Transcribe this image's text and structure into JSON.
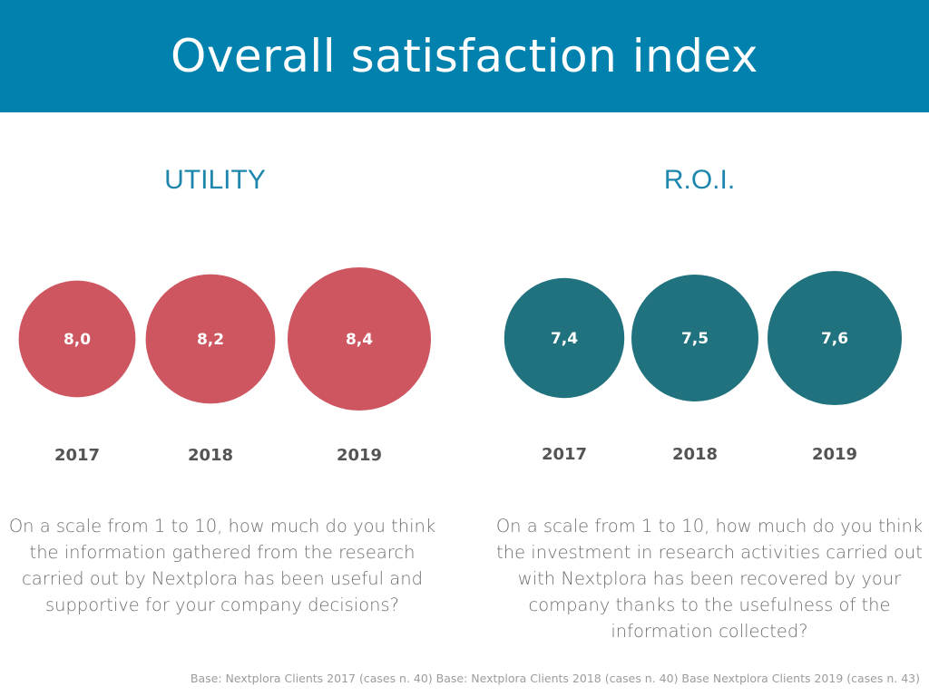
{
  "header": {
    "title": "Overall satisfaction index"
  },
  "colors": {
    "header_bg": "#0181ad",
    "utility": "#cd5660",
    "roi": "#20737e",
    "panel_title": "#1c86ad"
  },
  "chart_data": [
    {
      "type": "bubble",
      "title": "UTILITY",
      "categories": [
        "2017",
        "2018",
        "2019"
      ],
      "values": [
        8.0,
        8.2,
        8.4
      ],
      "value_labels": [
        "8,0",
        "8,2",
        "8,4"
      ],
      "scale": [
        1,
        10
      ],
      "color": "#cd5660",
      "question": "On a scale from 1 to 10, how much do you think the information gathered from the research carried out by Nextplora has been useful and supportive for your company decisions?"
    },
    {
      "type": "bubble",
      "title": "R.O.I.",
      "categories": [
        "2017",
        "2018",
        "2019"
      ],
      "values": [
        7.4,
        7.5,
        7.6
      ],
      "value_labels": [
        "7,4",
        "7,5",
        "7,6"
      ],
      "scale": [
        1,
        10
      ],
      "color": "#20737e",
      "question": "On a scale from 1 to 10, how much do you think the investment in research activities carried out with Nextplora has been recovered by your company thanks to the usefulness of the information collected?"
    }
  ],
  "footnote": "Base: Nextplora Clients 2017 (cases n. 40) Base: Nextplora Clients 2018 (cases n. 40) Base  Nextplora Clients 2019 (cases n. 43)"
}
